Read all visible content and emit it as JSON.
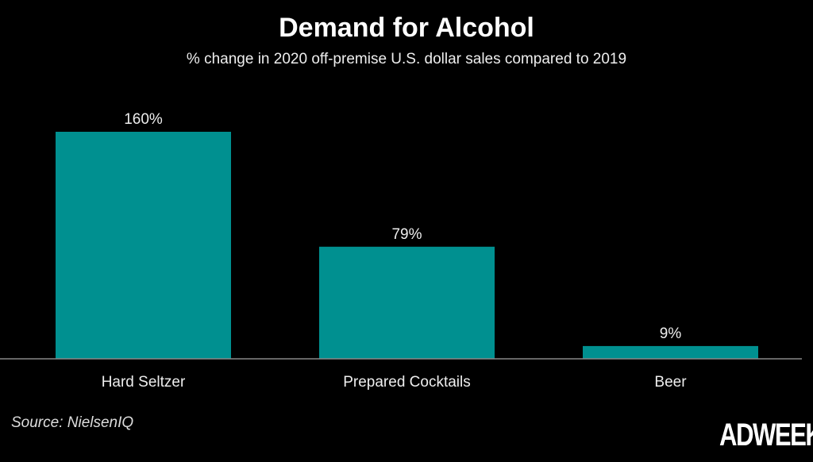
{
  "chart_data": {
    "type": "bar",
    "title": "Demand for Alcohol",
    "subtitle": "% change in 2020 off-premise U.S. dollar sales compared to 2019",
    "categories": [
      "Hard Seltzer",
      "Prepared Cocktails",
      "Beer"
    ],
    "values": [
      160,
      79,
      9
    ],
    "data_labels": [
      "160%",
      "79%",
      "9%"
    ],
    "xlabel": "",
    "ylabel": "",
    "ylim": [
      0,
      160
    ],
    "grid": false,
    "bar_color": "#009090"
  },
  "source": "Source: NielsenIQ",
  "logo": "ADWEEK"
}
